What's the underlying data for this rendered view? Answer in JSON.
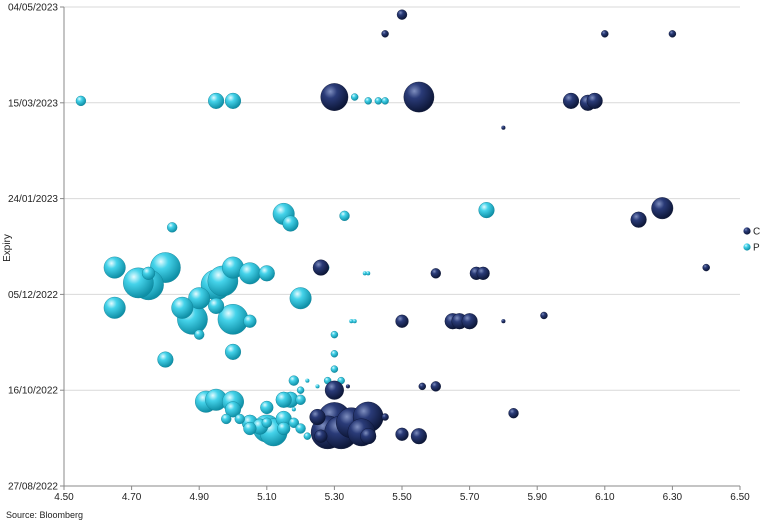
{
  "chart_data": {
    "type": "scatter",
    "title": "",
    "xlabel": "",
    "ylabel": "Expiry",
    "source": "Source: Bloomberg",
    "xlim": [
      4.5,
      6.5
    ],
    "x_ticks": [
      "4.50",
      "4.70",
      "4.90",
      "5.10",
      "5.30",
      "5.50",
      "5.70",
      "5.90",
      "6.10",
      "6.30",
      "6.50"
    ],
    "y_ticks": [
      "27/08/2022",
      "16/10/2022",
      "05/12/2022",
      "24/01/2023",
      "15/03/2023",
      "04/05/2023"
    ],
    "ylim": [
      "2022-08-27",
      "2023-05-04"
    ],
    "grid": true,
    "legend_position": "right",
    "colors": {
      "C": "#1b2a5e",
      "P": "#2fc4dc"
    },
    "series": [
      {
        "name": "C",
        "points": [
          {
            "x": 5.5,
            "y": "2023-04-30",
            "size": 3
          },
          {
            "x": 5.45,
            "y": "2023-04-20",
            "size": 2
          },
          {
            "x": 6.1,
            "y": "2023-04-20",
            "size": 2
          },
          {
            "x": 6.3,
            "y": "2023-04-20",
            "size": 2
          },
          {
            "x": 5.3,
            "y": "2023-03-18",
            "size": 9
          },
          {
            "x": 5.55,
            "y": "2023-03-18",
            "size": 10
          },
          {
            "x": 6.0,
            "y": "2023-03-16",
            "size": 5
          },
          {
            "x": 6.05,
            "y": "2023-03-15",
            "size": 5
          },
          {
            "x": 6.07,
            "y": "2023-03-16",
            "size": 5
          },
          {
            "x": 5.8,
            "y": "2023-03-02",
            "size": 1
          },
          {
            "x": 6.27,
            "y": "2023-01-19",
            "size": 7
          },
          {
            "x": 6.2,
            "y": "2023-01-13",
            "size": 5
          },
          {
            "x": 5.26,
            "y": "2022-12-19",
            "size": 5
          },
          {
            "x": 5.6,
            "y": "2022-12-16",
            "size": 3
          },
          {
            "x": 5.72,
            "y": "2022-12-16",
            "size": 4
          },
          {
            "x": 5.74,
            "y": "2022-12-16",
            "size": 4
          },
          {
            "x": 6.4,
            "y": "2022-12-19",
            "size": 2
          },
          {
            "x": 5.92,
            "y": "2022-11-24",
            "size": 2
          },
          {
            "x": 5.5,
            "y": "2022-11-21",
            "size": 4
          },
          {
            "x": 5.65,
            "y": "2022-11-21",
            "size": 5
          },
          {
            "x": 5.67,
            "y": "2022-11-21",
            "size": 5
          },
          {
            "x": 5.7,
            "y": "2022-11-21",
            "size": 5
          },
          {
            "x": 5.8,
            "y": "2022-11-21",
            "size": 1
          },
          {
            "x": 5.3,
            "y": "2022-10-16",
            "size": 6
          },
          {
            "x": 5.34,
            "y": "2022-10-18",
            "size": 1
          },
          {
            "x": 5.56,
            "y": "2022-10-18",
            "size": 2
          },
          {
            "x": 5.6,
            "y": "2022-10-18",
            "size": 3
          },
          {
            "x": 5.83,
            "y": "2022-10-04",
            "size": 3
          },
          {
            "x": 5.25,
            "y": "2022-10-02",
            "size": 5
          },
          {
            "x": 5.3,
            "y": "2022-10-01",
            "size": 11
          },
          {
            "x": 5.35,
            "y": "2022-09-29",
            "size": 10
          },
          {
            "x": 5.4,
            "y": "2022-10-02",
            "size": 10
          },
          {
            "x": 5.45,
            "y": "2022-10-02",
            "size": 2
          },
          {
            "x": 5.28,
            "y": "2022-09-24",
            "size": 11
          },
          {
            "x": 5.32,
            "y": "2022-09-24",
            "size": 11
          },
          {
            "x": 5.38,
            "y": "2022-09-24",
            "size": 9
          },
          {
            "x": 5.4,
            "y": "2022-09-22",
            "size": 5
          },
          {
            "x": 5.26,
            "y": "2022-09-22",
            "size": 4
          },
          {
            "x": 5.5,
            "y": "2022-09-23",
            "size": 4
          },
          {
            "x": 5.55,
            "y": "2022-09-22",
            "size": 5
          }
        ]
      },
      {
        "name": "P",
        "points": [
          {
            "x": 4.55,
            "y": "2023-03-16",
            "size": 3
          },
          {
            "x": 4.95,
            "y": "2023-03-16",
            "size": 5
          },
          {
            "x": 5.0,
            "y": "2023-03-16",
            "size": 5
          },
          {
            "x": 5.36,
            "y": "2023-03-18",
            "size": 2
          },
          {
            "x": 5.4,
            "y": "2023-03-16",
            "size": 2
          },
          {
            "x": 5.43,
            "y": "2023-03-16",
            "size": 2
          },
          {
            "x": 5.45,
            "y": "2023-03-16",
            "size": 2
          },
          {
            "x": 5.15,
            "y": "2023-01-16",
            "size": 7
          },
          {
            "x": 5.17,
            "y": "2023-01-11",
            "size": 5
          },
          {
            "x": 5.33,
            "y": "2023-01-15",
            "size": 3
          },
          {
            "x": 5.75,
            "y": "2023-01-18",
            "size": 5
          },
          {
            "x": 4.82,
            "y": "2023-01-09",
            "size": 3
          },
          {
            "x": 4.65,
            "y": "2022-12-19",
            "size": 7
          },
          {
            "x": 4.75,
            "y": "2022-12-16",
            "size": 4
          },
          {
            "x": 4.8,
            "y": "2022-12-19",
            "size": 10
          },
          {
            "x": 4.75,
            "y": "2022-12-10",
            "size": 10
          },
          {
            "x": 4.72,
            "y": "2022-12-11",
            "size": 10
          },
          {
            "x": 4.9,
            "y": "2022-12-03",
            "size": 7
          },
          {
            "x": 4.95,
            "y": "2022-12-10",
            "size": 10
          },
          {
            "x": 4.97,
            "y": "2022-12-12",
            "size": 10
          },
          {
            "x": 5.0,
            "y": "2022-12-19",
            "size": 7
          },
          {
            "x": 5.05,
            "y": "2022-12-16",
            "size": 7
          },
          {
            "x": 5.1,
            "y": "2022-12-16",
            "size": 5
          },
          {
            "x": 4.65,
            "y": "2022-11-28",
            "size": 7
          },
          {
            "x": 4.85,
            "y": "2022-11-28",
            "size": 7
          },
          {
            "x": 4.88,
            "y": "2022-11-22",
            "size": 10
          },
          {
            "x": 4.95,
            "y": "2022-11-29",
            "size": 5
          },
          {
            "x": 4.9,
            "y": "2022-11-14",
            "size": 3
          },
          {
            "x": 5.0,
            "y": "2022-11-22",
            "size": 10
          },
          {
            "x": 5.05,
            "y": "2022-11-21",
            "size": 4
          },
          {
            "x": 5.2,
            "y": "2022-12-03",
            "size": 7
          },
          {
            "x": 5.27,
            "y": "2022-12-19",
            "size": 3
          },
          {
            "x": 5.39,
            "y": "2022-12-16",
            "size": 1
          },
          {
            "x": 5.4,
            "y": "2022-12-16",
            "size": 1
          },
          {
            "x": 4.8,
            "y": "2022-11-01",
            "size": 5
          },
          {
            "x": 5.0,
            "y": "2022-11-05",
            "size": 5
          },
          {
            "x": 5.35,
            "y": "2022-11-21",
            "size": 1
          },
          {
            "x": 5.36,
            "y": "2022-11-21",
            "size": 1
          },
          {
            "x": 5.3,
            "y": "2022-11-14",
            "size": 2
          },
          {
            "x": 5.3,
            "y": "2022-11-04",
            "size": 2
          },
          {
            "x": 5.3,
            "y": "2022-10-27",
            "size": 2
          },
          {
            "x": 5.18,
            "y": "2022-10-21",
            "size": 3
          },
          {
            "x": 5.22,
            "y": "2022-10-21",
            "size": 1
          },
          {
            "x": 5.25,
            "y": "2022-10-18",
            "size": 1
          },
          {
            "x": 5.28,
            "y": "2022-10-21",
            "size": 2
          },
          {
            "x": 5.32,
            "y": "2022-10-21",
            "size": 2
          },
          {
            "x": 5.2,
            "y": "2022-10-16",
            "size": 2
          },
          {
            "x": 5.2,
            "y": "2022-10-11",
            "size": 3
          },
          {
            "x": 5.17,
            "y": "2022-10-11",
            "size": 5
          },
          {
            "x": 5.15,
            "y": "2022-10-11",
            "size": 5
          },
          {
            "x": 5.1,
            "y": "2022-10-07",
            "size": 4
          },
          {
            "x": 5.18,
            "y": "2022-10-06",
            "size": 1
          },
          {
            "x": 4.92,
            "y": "2022-10-10",
            "size": 7
          },
          {
            "x": 4.95,
            "y": "2022-10-11",
            "size": 7
          },
          {
            "x": 5.0,
            "y": "2022-10-10",
            "size": 7
          },
          {
            "x": 5.0,
            "y": "2022-10-06",
            "size": 5
          },
          {
            "x": 4.98,
            "y": "2022-10-01",
            "size": 3
          },
          {
            "x": 5.02,
            "y": "2022-10-01",
            "size": 3
          },
          {
            "x": 5.05,
            "y": "2022-09-29",
            "size": 5
          },
          {
            "x": 5.08,
            "y": "2022-09-27",
            "size": 5
          },
          {
            "x": 5.1,
            "y": "2022-09-26",
            "size": 9
          },
          {
            "x": 5.12,
            "y": "2022-09-24",
            "size": 9
          },
          {
            "x": 5.15,
            "y": "2022-10-01",
            "size": 5
          },
          {
            "x": 5.15,
            "y": "2022-09-26",
            "size": 4
          },
          {
            "x": 5.18,
            "y": "2022-09-29",
            "size": 3
          },
          {
            "x": 5.2,
            "y": "2022-09-26",
            "size": 3
          },
          {
            "x": 5.22,
            "y": "2022-09-22",
            "size": 2
          },
          {
            "x": 5.1,
            "y": "2022-09-29",
            "size": 3
          },
          {
            "x": 5.05,
            "y": "2022-09-26",
            "size": 4
          }
        ]
      }
    ]
  }
}
